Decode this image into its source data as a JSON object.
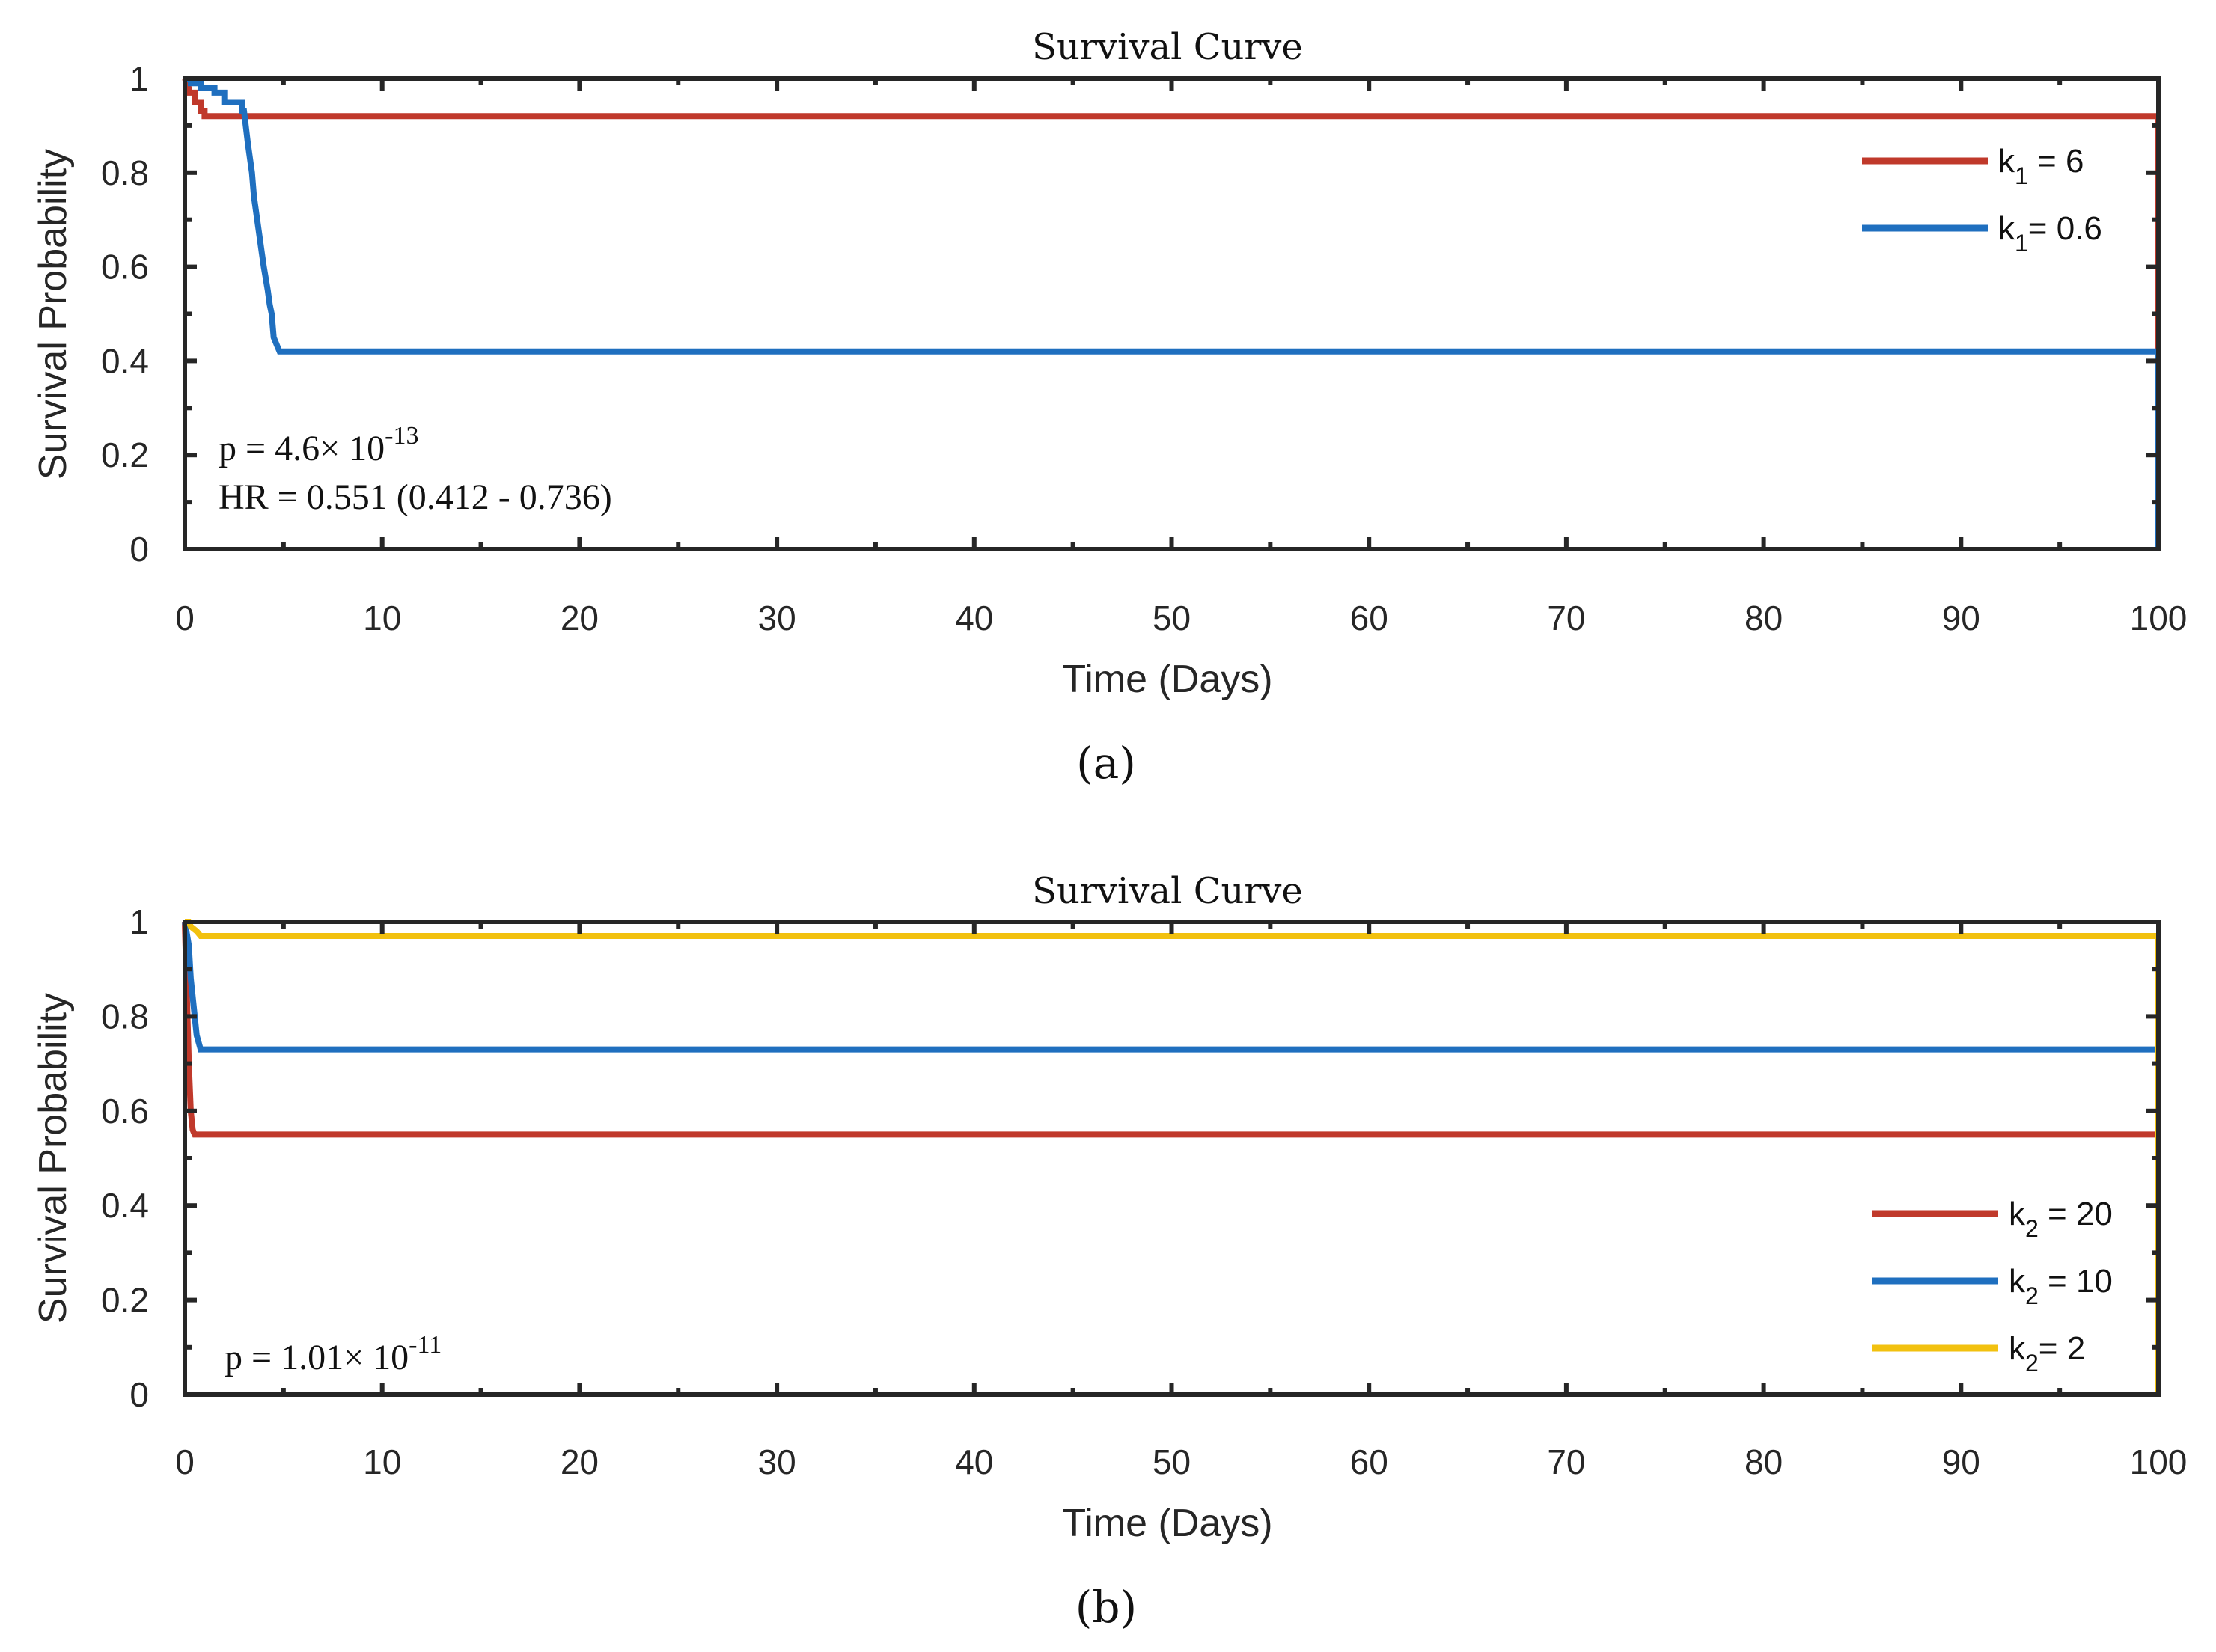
{
  "figure": {
    "captions": [
      "(a)",
      "(b)"
    ]
  },
  "chart_data": [
    {
      "type": "line",
      "step": true,
      "title": "Survival Curve",
      "xlabel": "Time (Days)",
      "ylabel": "Survival Probability",
      "xlim": [
        0,
        100
      ],
      "ylim": [
        0,
        1
      ],
      "xticks": [
        0,
        10,
        20,
        30,
        40,
        50,
        60,
        70,
        80,
        90,
        100
      ],
      "yticks": [
        0,
        0.2,
        0.4,
        0.6,
        0.8,
        1
      ],
      "ytick_labels": [
        "0",
        "0.2",
        "0.4",
        "0.6",
        "0.8",
        "1"
      ],
      "legend_position": "top-right",
      "series": [
        {
          "name": "k1 = 6",
          "label_main": "k",
          "label_sub": "1",
          "label_rest": " = 6",
          "color": "#c0392b",
          "points": [
            [
              0,
              1
            ],
            [
              0.2,
              0.98
            ],
            [
              0.2,
              0.97
            ],
            [
              0.5,
              0.97
            ],
            [
              0.5,
              0.95
            ],
            [
              0.8,
              0.95
            ],
            [
              0.8,
              0.93
            ],
            [
              1,
              0.93
            ],
            [
              1,
              0.92
            ],
            [
              100,
              0.92
            ],
            [
              100,
              0.42
            ]
          ]
        },
        {
          "name": "k1= 0.6",
          "label_main": "k",
          "label_sub": "1",
          "label_rest": "= 0.6",
          "color": "#1f6fbf",
          "points": [
            [
              0,
              1
            ],
            [
              0.3,
              1
            ],
            [
              0.3,
              0.99
            ],
            [
              0.8,
              0.99
            ],
            [
              0.8,
              0.98
            ],
            [
              1.5,
              0.98
            ],
            [
              1.5,
              0.97
            ],
            [
              2.0,
              0.97
            ],
            [
              2.0,
              0.95
            ],
            [
              2.9,
              0.95
            ],
            [
              2.9,
              0.93
            ],
            [
              3.0,
              0.93
            ],
            [
              3.2,
              0.86
            ],
            [
              3.4,
              0.8
            ],
            [
              3.5,
              0.75
            ],
            [
              3.6,
              0.72
            ],
            [
              3.8,
              0.66
            ],
            [
              3.9,
              0.63
            ],
            [
              4.0,
              0.6
            ],
            [
              4.2,
              0.55
            ],
            [
              4.3,
              0.52
            ],
            [
              4.4,
              0.5
            ],
            [
              4.5,
              0.45
            ],
            [
              4.7,
              0.43
            ],
            [
              4.8,
              0.42
            ],
            [
              100,
              0.42
            ],
            [
              100,
              0
            ]
          ]
        }
      ],
      "annotations": [
        {
          "text": "p = 4.6× 10",
          "sup": "-13"
        },
        {
          "text": "HR = 0.551 (0.412 - 0.736)",
          "sup": ""
        }
      ]
    },
    {
      "type": "line",
      "step": true,
      "title": "Survival Curve",
      "xlabel": "Time (Days)",
      "ylabel": "Survival Probability",
      "xlim": [
        0,
        100
      ],
      "ylim": [
        0,
        1
      ],
      "xticks": [
        0,
        10,
        20,
        30,
        40,
        50,
        60,
        70,
        80,
        90,
        100
      ],
      "yticks": [
        0,
        0.2,
        0.4,
        0.6,
        0.8,
        1
      ],
      "ytick_labels": [
        "0",
        "0.2",
        "0.4",
        "0.6",
        "0.8",
        "1"
      ],
      "legend_position": "bottom-right",
      "series": [
        {
          "name": "k2 = 20",
          "label_main": "k",
          "label_sub": "2",
          "label_rest": " = 20",
          "color": "#c0392b",
          "points": [
            [
              0,
              1
            ],
            [
              0.1,
              0.85
            ],
            [
              0.2,
              0.7
            ],
            [
              0.3,
              0.6
            ],
            [
              0.4,
              0.56
            ],
            [
              0.5,
              0.55
            ],
            [
              100,
              0.55
            ]
          ]
        },
        {
          "name": "k2 = 10",
          "label_main": "k",
          "label_sub": "2",
          "label_rest": " = 10",
          "color": "#1f6fbf",
          "points": [
            [
              0,
              1
            ],
            [
              0.2,
              0.95
            ],
            [
              0.3,
              0.88
            ],
            [
              0.5,
              0.8
            ],
            [
              0.6,
              0.76
            ],
            [
              0.8,
              0.73
            ],
            [
              100,
              0.73
            ]
          ]
        },
        {
          "name": "k2= 2",
          "label_main": "k",
          "label_sub": "2",
          "label_rest": "= 2",
          "color": "#f2c10f",
          "points": [
            [
              0,
              1
            ],
            [
              0.2,
              1
            ],
            [
              0.3,
              0.99
            ],
            [
              0.6,
              0.98
            ],
            [
              0.8,
              0.97
            ],
            [
              100,
              0.97
            ],
            [
              100,
              0
            ]
          ]
        }
      ],
      "annotations": [
        {
          "text": "p = 1.01× 10",
          "sup": "-11"
        }
      ]
    }
  ]
}
